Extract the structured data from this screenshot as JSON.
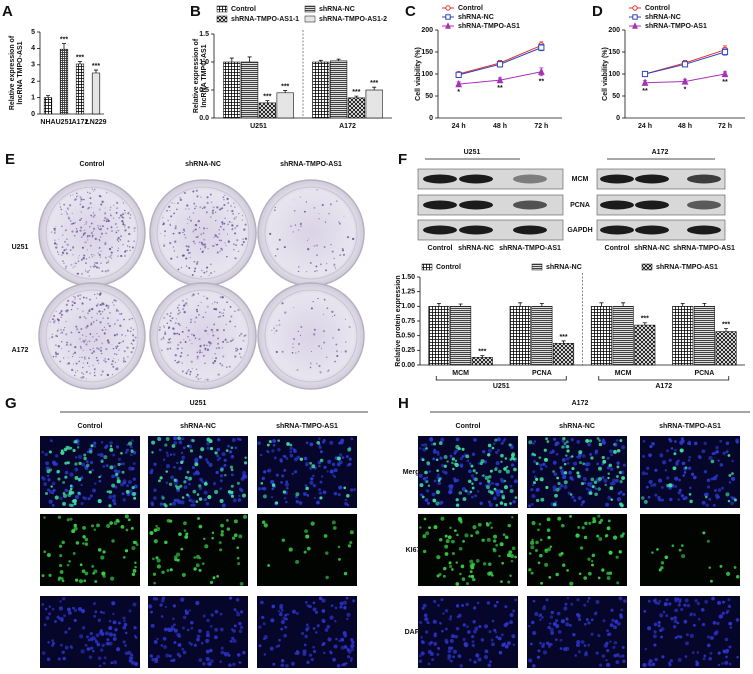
{
  "figure_labels": [
    "A",
    "B",
    "C",
    "D",
    "E",
    "F",
    "G",
    "H"
  ],
  "chart_data": [
    {
      "type": "bar",
      "ylabel": [
        "Relative expression of",
        "lncRNA TMPO-AS1"
      ],
      "categories": [
        "NHA",
        "U251",
        "A172",
        "LN229"
      ],
      "values": [
        1.0,
        3.95,
        3.05,
        2.5
      ],
      "errors": [
        0.12,
        0.35,
        0.15,
        0.18
      ],
      "significance": [
        null,
        "***",
        "***",
        "***"
      ],
      "ylim": [
        0,
        5
      ],
      "yticks": [
        0,
        1,
        2,
        3,
        4,
        5
      ]
    },
    {
      "type": "bar",
      "ylabel": [
        "Relative expression of",
        "lncRNA TMPO-AS1"
      ],
      "categories": [
        "U251",
        "A172"
      ],
      "legend": "top",
      "divider": true,
      "series": [
        {
          "name": "Control",
          "values": [
            1.0,
            1.0
          ],
          "errors": [
            0.07,
            0.03
          ],
          "significance": [
            null,
            null
          ]
        },
        {
          "name": "shRNA-NC",
          "values": [
            1.0,
            1.02
          ],
          "errors": [
            0.09,
            0.03
          ],
          "significance": [
            null,
            null
          ]
        },
        {
          "name": "shRNA-TMPO-AS1-1",
          "values": [
            0.27,
            0.36
          ],
          "errors": [
            0.04,
            0.03
          ],
          "significance": [
            "***",
            "***"
          ]
        },
        {
          "name": "shRNA-TMPO-AS1-2",
          "values": [
            0.45,
            0.5
          ],
          "errors": [
            0.04,
            0.05
          ],
          "significance": [
            "***",
            "***"
          ]
        }
      ],
      "ylim": [
        0,
        1.5
      ],
      "yticks": [
        {
          "value": 0,
          "label": "0.0"
        },
        0.5,
        {
          "value": 1,
          "label": "1.0"
        },
        1.5
      ]
    },
    {
      "type": "line",
      "ylabel": "Cell viability (%)",
      "categories": [
        "24 h",
        "48 h",
        "72 h"
      ],
      "legend": "top-left",
      "series": [
        {
          "name": "Control",
          "color": "#e0312c",
          "marker": "circle",
          "values": [
            100,
            125,
            165
          ],
          "errors": [
            4,
            6,
            8
          ]
        },
        {
          "name": "shRNA-NC",
          "color": "#2f43c0",
          "marker": "square",
          "values": [
            98,
            122,
            160
          ],
          "errors": [
            4,
            6,
            7
          ]
        },
        {
          "name": "shRNA-TMPO-AS1",
          "color": "#a533b5",
          "marker": "triangle",
          "values": [
            77,
            86,
            105
          ],
          "errors": [
            5,
            5,
            9
          ],
          "significance": [
            "*",
            "**",
            "**"
          ]
        }
      ],
      "ylim": [
        0,
        200
      ],
      "yticks": [
        0,
        50,
        100,
        150,
        200
      ]
    },
    {
      "type": "line",
      "ylabel": "Cell viability (%)",
      "categories": [
        "24 h",
        "48 h",
        "72 h"
      ],
      "legend": "top-left",
      "series": [
        {
          "name": "Control",
          "color": "#e0312c",
          "marker": "circle",
          "values": [
            100,
            125,
            155
          ],
          "errors": [
            4,
            6,
            9
          ]
        },
        {
          "name": "shRNA-NC",
          "color": "#2f43c0",
          "marker": "square",
          "values": [
            100,
            122,
            150
          ],
          "errors": [
            4,
            5,
            7
          ]
        },
        {
          "name": "shRNA-TMPO-AS1",
          "color": "#a533b5",
          "marker": "triangle",
          "values": [
            80,
            83,
            100
          ],
          "errors": [
            5,
            5,
            5
          ],
          "significance": [
            "**",
            "*",
            "**"
          ]
        }
      ],
      "ylim": [
        0,
        200
      ],
      "yticks": [
        0,
        50,
        100,
        150,
        200
      ]
    },
    {
      "type": "bar",
      "ylabel": "Relative protein expression",
      "legend": "top",
      "divider": true,
      "categories": [
        "MCM",
        "PCNA",
        "MCM",
        "PCNA"
      ],
      "groups": [
        "U251",
        "A172"
      ],
      "series": [
        {
          "name": "Control",
          "values": [
            1.0,
            1.0,
            1.0,
            1.0
          ],
          "errors": [
            0.05,
            0.06,
            0.06,
            0.05
          ],
          "significance": [
            null,
            null,
            null,
            null
          ]
        },
        {
          "name": "shRNA-NC",
          "values": [
            1.0,
            1.0,
            1.0,
            1.0
          ],
          "errors": [
            0.04,
            0.05,
            0.06,
            0.05
          ],
          "significance": [
            null,
            null,
            null,
            null
          ]
        },
        {
          "name": "shRNA-TMPO-AS1",
          "values": [
            0.13,
            0.37,
            0.68,
            0.57
          ],
          "errors": [
            0.03,
            0.04,
            0.04,
            0.05
          ],
          "significance": [
            "***",
            "***",
            "***",
            "***"
          ]
        }
      ],
      "ylim": [
        0,
        1.5
      ],
      "yticks": [
        {
          "value": 0,
          "label": "0.00"
        },
        0.25,
        {
          "value": 0.5,
          "label": "0.50"
        },
        0.75,
        {
          "value": 1,
          "label": "1.00"
        },
        1.25,
        {
          "value": 1.5,
          "label": "1.50"
        }
      ]
    }
  ],
  "colony_formation": {
    "columns": [
      "Control",
      "shRNA-NC",
      "shRNA-TMPO-AS1"
    ],
    "rows": [
      "U251",
      "A172"
    ]
  },
  "western_blot": {
    "cell_lines": [
      "U251",
      "A172"
    ],
    "proteins": [
      "MCM",
      "PCNA",
      "GAPDH"
    ],
    "lanes": [
      "Control",
      "shRNA-NC",
      "shRNA-TMPO-AS1"
    ]
  },
  "immunofluorescence": {
    "cell_lines": [
      "U251",
      "A172"
    ],
    "columns": [
      "Control",
      "shRNA-NC",
      "shRNA-TMPO-AS1"
    ],
    "channels": [
      "Merge",
      "KI67",
      "DAPI"
    ]
  }
}
